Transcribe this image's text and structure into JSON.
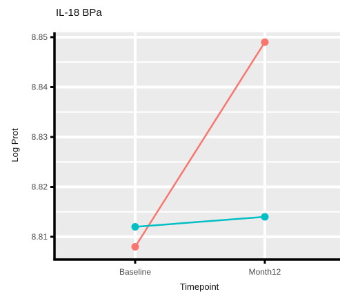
{
  "chart_data": {
    "type": "line",
    "title": "IL-18 BPa",
    "xlabel": "Timepoint",
    "ylabel": "Log Prot",
    "categories": [
      "Baseline",
      "Month12"
    ],
    "ylim": [
      8.805,
      8.852
    ],
    "yticks": [
      8.81,
      8.82,
      8.83,
      8.84,
      8.85
    ],
    "ytick_labels": [
      "8.81",
      "8.82",
      "8.83",
      "8.84",
      "8.85"
    ],
    "grid": true,
    "legend": "none",
    "series": [
      {
        "color": "#F8766D",
        "values": [
          8.808,
          8.849
        ]
      },
      {
        "color": "#00BFC4",
        "values": [
          8.812,
          8.814
        ]
      }
    ]
  }
}
